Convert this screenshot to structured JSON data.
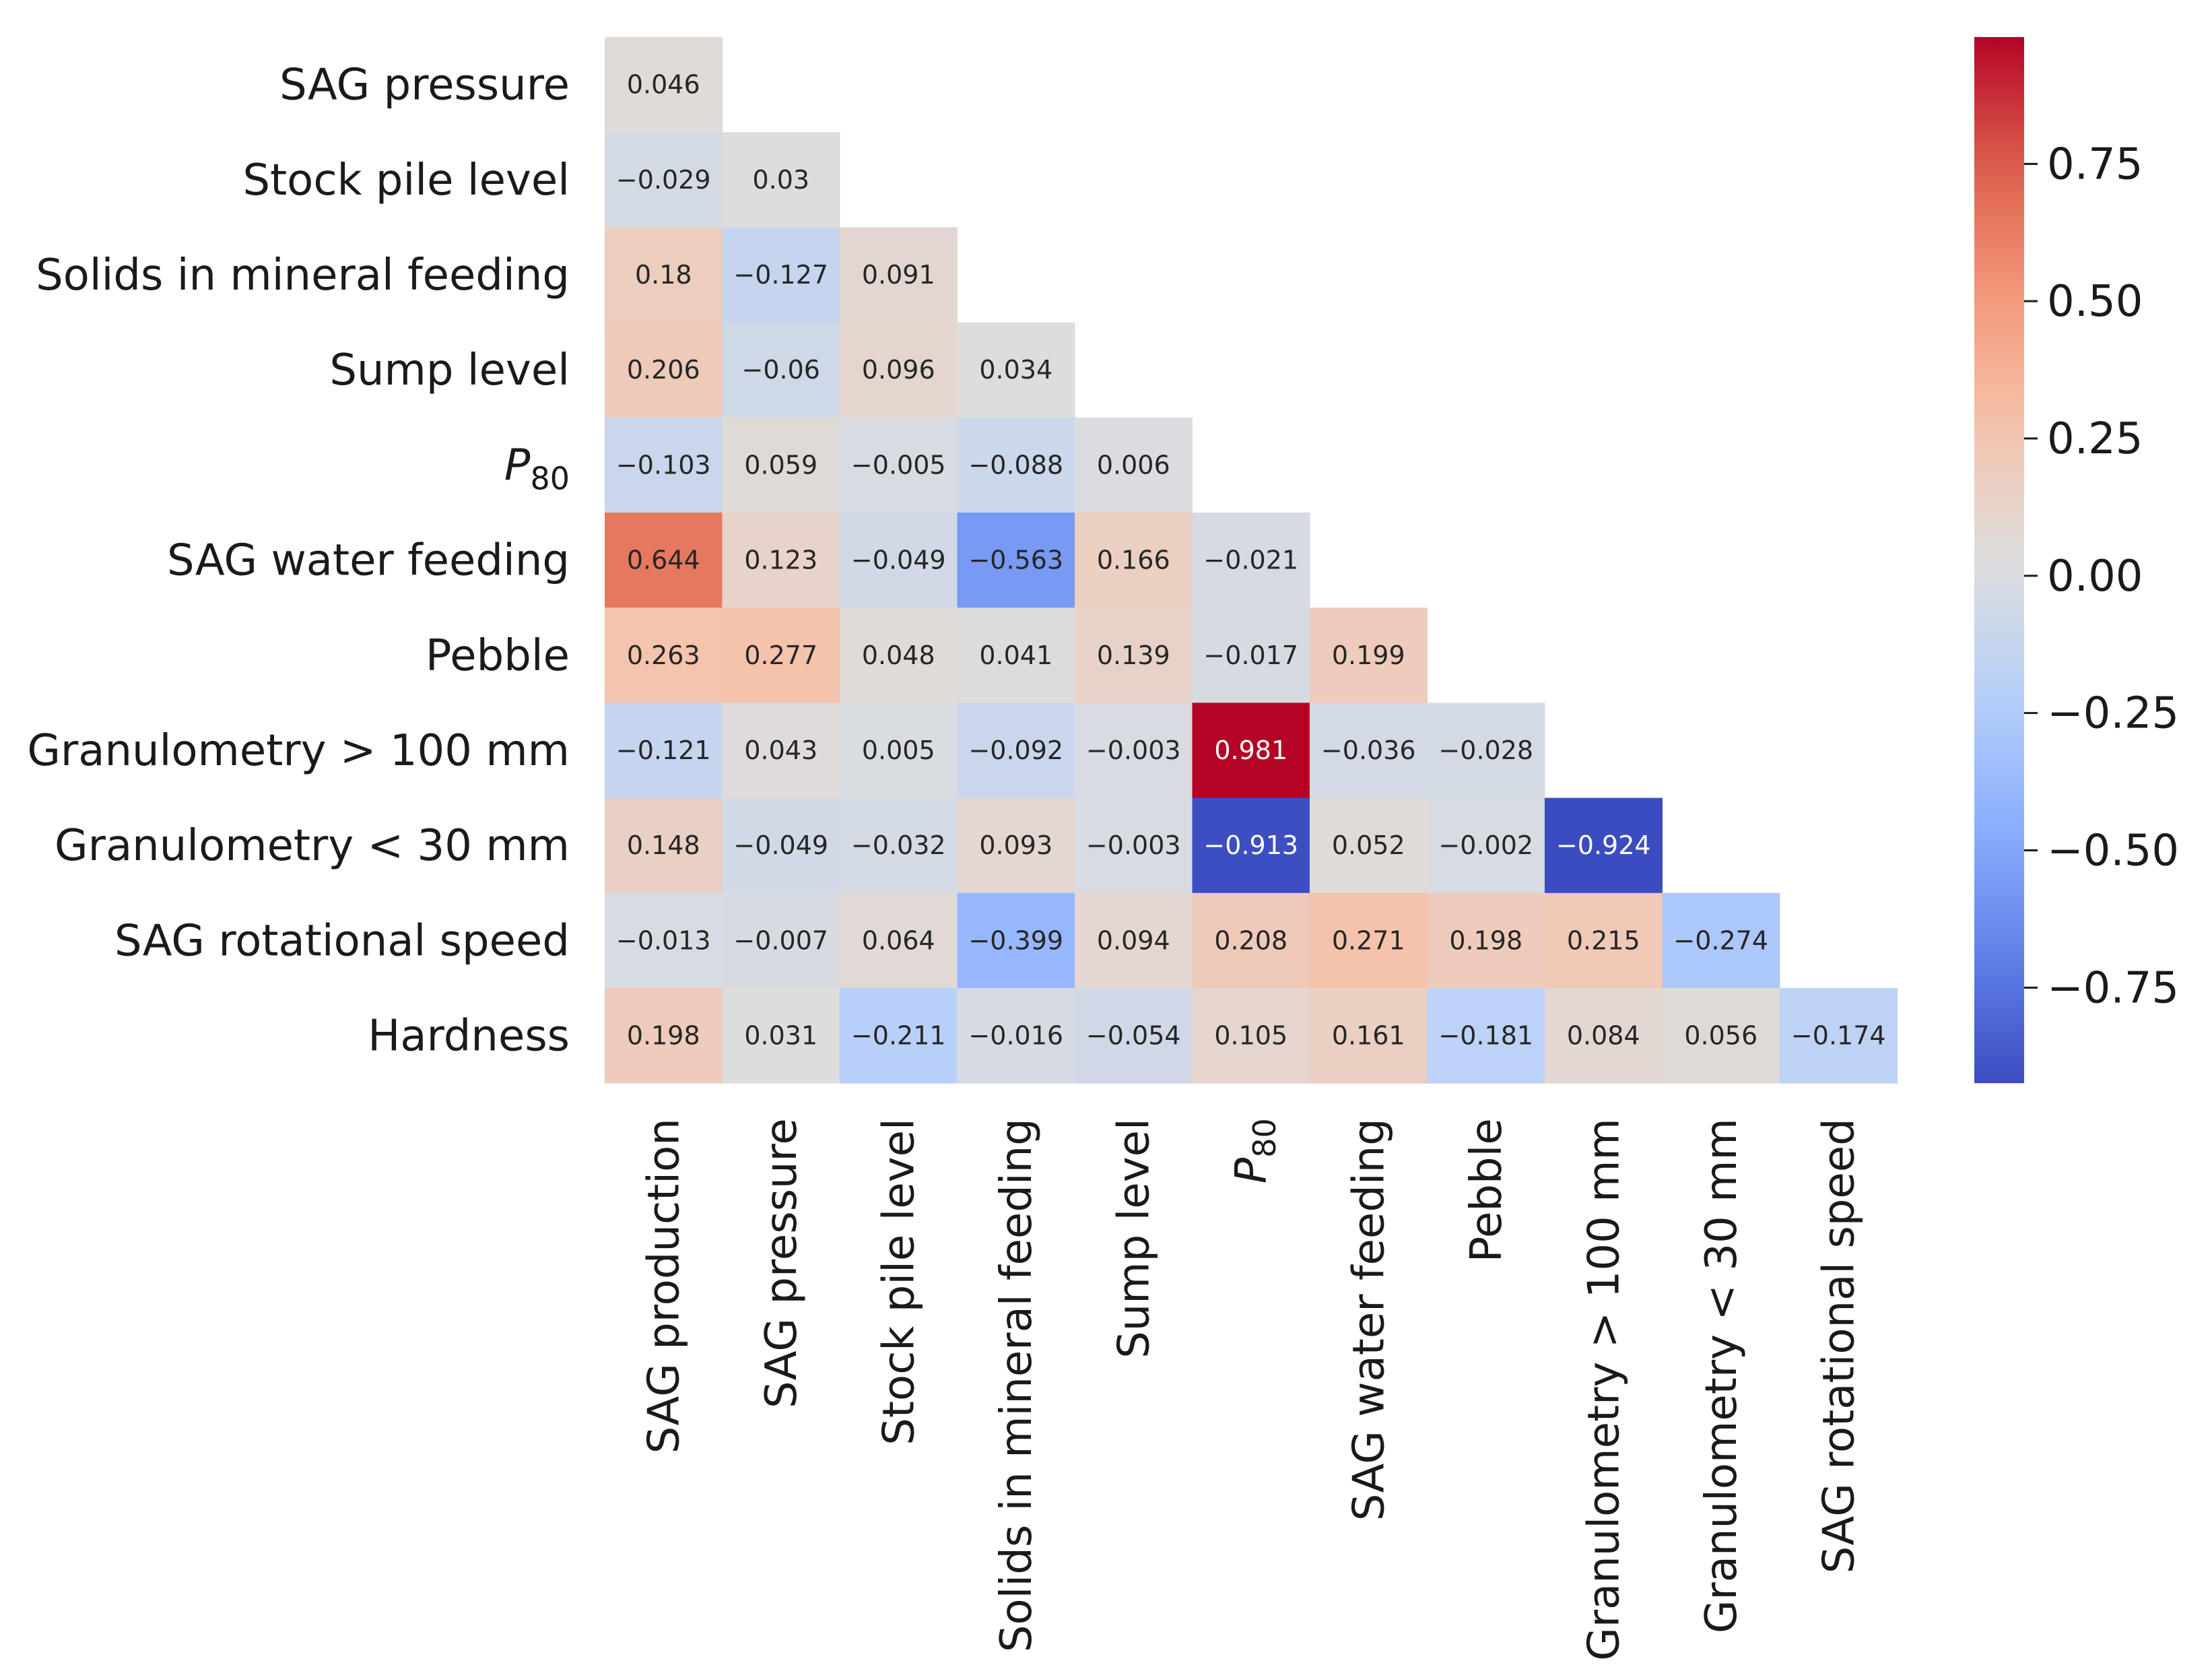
{
  "chart_data": {
    "type": "heatmap",
    "title": "",
    "xlabel": "",
    "ylabel": "",
    "colormap": "coolwarm",
    "vmin": -0.924,
    "vmax": 0.981,
    "row_labels": [
      "SAG pressure",
      "Stock pile level",
      "Solids in mineral feeding",
      "Sump level",
      "P80",
      "SAG water feeding",
      "Pebble",
      "Granulometry > 100 mm",
      "Granulometry < 30 mm",
      "SAG rotational speed",
      "Hardness"
    ],
    "col_labels": [
      "SAG production",
      "SAG pressure",
      "Stock pile level",
      "Solids in mineral feeding",
      "Sump level",
      "P80",
      "SAG water feeding",
      "Pebble",
      "Granulometry > 100 mm",
      "Granulometry < 30 mm",
      "SAG rotational speed"
    ],
    "values": [
      [
        0.046
      ],
      [
        -0.029,
        0.03
      ],
      [
        0.18,
        -0.127,
        0.091
      ],
      [
        0.206,
        -0.06,
        0.096,
        0.034
      ],
      [
        -0.103,
        0.059,
        -0.005,
        -0.088,
        0.006
      ],
      [
        0.644,
        0.123,
        -0.049,
        -0.563,
        0.166,
        -0.021
      ],
      [
        0.263,
        0.277,
        0.048,
        0.041,
        0.139,
        -0.017,
        0.199
      ],
      [
        -0.121,
        0.043,
        0.005,
        -0.092,
        -0.003,
        0.981,
        -0.036,
        -0.028
      ],
      [
        0.148,
        -0.049,
        -0.032,
        0.093,
        -0.003,
        -0.913,
        0.052,
        -0.002,
        -0.924
      ],
      [
        -0.013,
        -0.007,
        0.064,
        -0.399,
        0.094,
        0.208,
        0.271,
        0.198,
        0.215,
        -0.274
      ],
      [
        0.198,
        0.031,
        -0.211,
        -0.016,
        -0.054,
        0.105,
        0.161,
        -0.181,
        0.084,
        0.056,
        -0.174
      ]
    ],
    "value_labels": [
      [
        "0.046"
      ],
      [
        "−0.029",
        "0.03"
      ],
      [
        "0.18",
        "−0.127",
        "0.091"
      ],
      [
        "0.206",
        "−0.06",
        "0.096",
        "0.034"
      ],
      [
        "−0.103",
        "0.059",
        "−0.005",
        "−0.088",
        "0.006"
      ],
      [
        "0.644",
        "0.123",
        "−0.049",
        "−0.563",
        "0.166",
        "−0.021"
      ],
      [
        "0.263",
        "0.277",
        "0.048",
        "0.041",
        "0.139",
        "−0.017",
        "0.199"
      ],
      [
        "−0.121",
        "0.043",
        "0.005",
        "−0.092",
        "−0.003",
        "0.981",
        "−0.036",
        "−0.028"
      ],
      [
        "0.148",
        "−0.049",
        "−0.032",
        "0.093",
        "−0.003",
        "−0.913",
        "0.052",
        "−0.002",
        "−0.924"
      ],
      [
        "−0.013",
        "−0.007",
        "0.064",
        "−0.399",
        "0.094",
        "0.208",
        "0.271",
        "0.198",
        "0.215",
        "−0.274"
      ],
      [
        "0.198",
        "0.031",
        "−0.211",
        "−0.016",
        "−0.054",
        "0.105",
        "0.161",
        "−0.181",
        "0.084",
        "0.056",
        "−0.174"
      ]
    ],
    "colorbar": {
      "ticks": [
        0.75,
        0.5,
        0.25,
        0,
        -0.25,
        -0.5,
        -0.75
      ],
      "tick_labels": [
        "0.75",
        "0.50",
        "0.25",
        "0.00",
        "−0.25",
        "−0.50",
        "−0.75"
      ]
    },
    "grid": false,
    "legend": "colorbar-right"
  }
}
